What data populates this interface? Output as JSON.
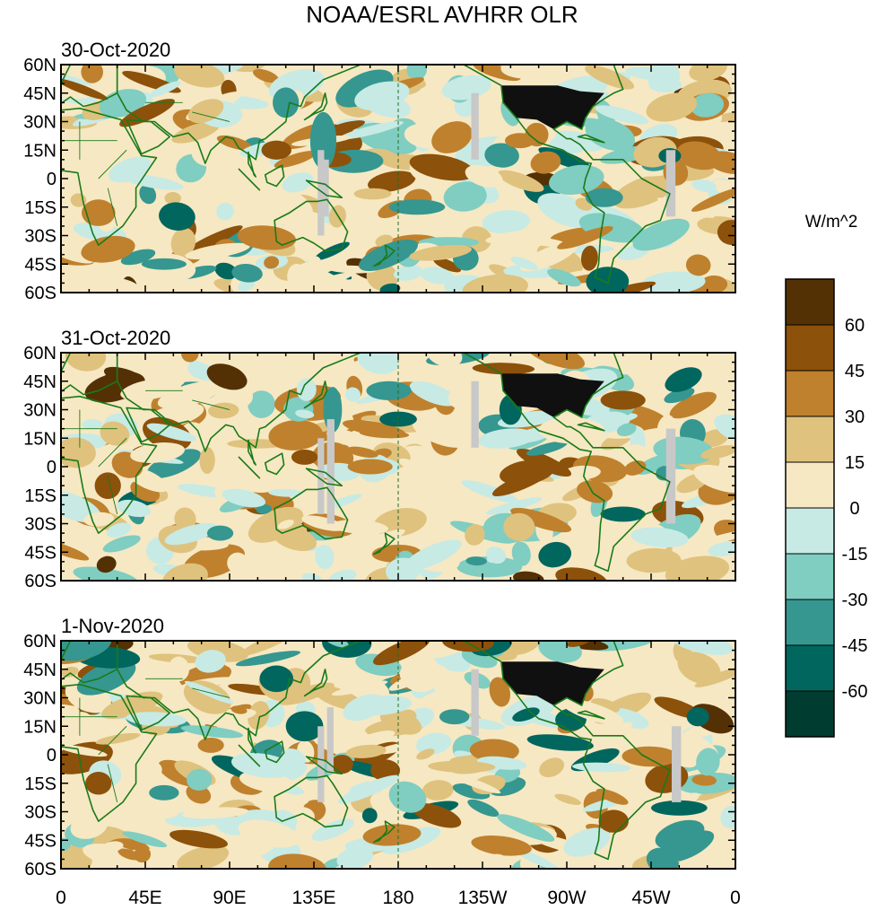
{
  "title": "NOAA/ESRL AVHRR OLR",
  "units": "W/m^2",
  "panels": [
    {
      "date": "30-Oct-2020"
    },
    {
      "date": "31-Oct-2020"
    },
    {
      "date": "1-Nov-2020"
    }
  ],
  "lat_labels": [
    "60N",
    "45N",
    "30N",
    "15N",
    "0",
    "15S",
    "30S",
    "45S",
    "60S"
  ],
  "lon_labels": [
    "0",
    "45E",
    "90E",
    "135E",
    "180",
    "135W",
    "90W",
    "45W",
    "0"
  ],
  "colorbar": {
    "labels": [
      "60",
      "45",
      "30",
      "15",
      "0",
      "-15",
      "-30",
      "-45",
      "-60"
    ],
    "colors": [
      "#543005",
      "#8c510a",
      "#bf812d",
      "#dfc27d",
      "#f6e8c3",
      "#c7eae5",
      "#80cdc1",
      "#35978f",
      "#01665e",
      "#003c30"
    ]
  },
  "map_colors": {
    "coast": "#1a7a1a",
    "missing": "#c8c8c8",
    "us_outline": "#101010"
  }
}
